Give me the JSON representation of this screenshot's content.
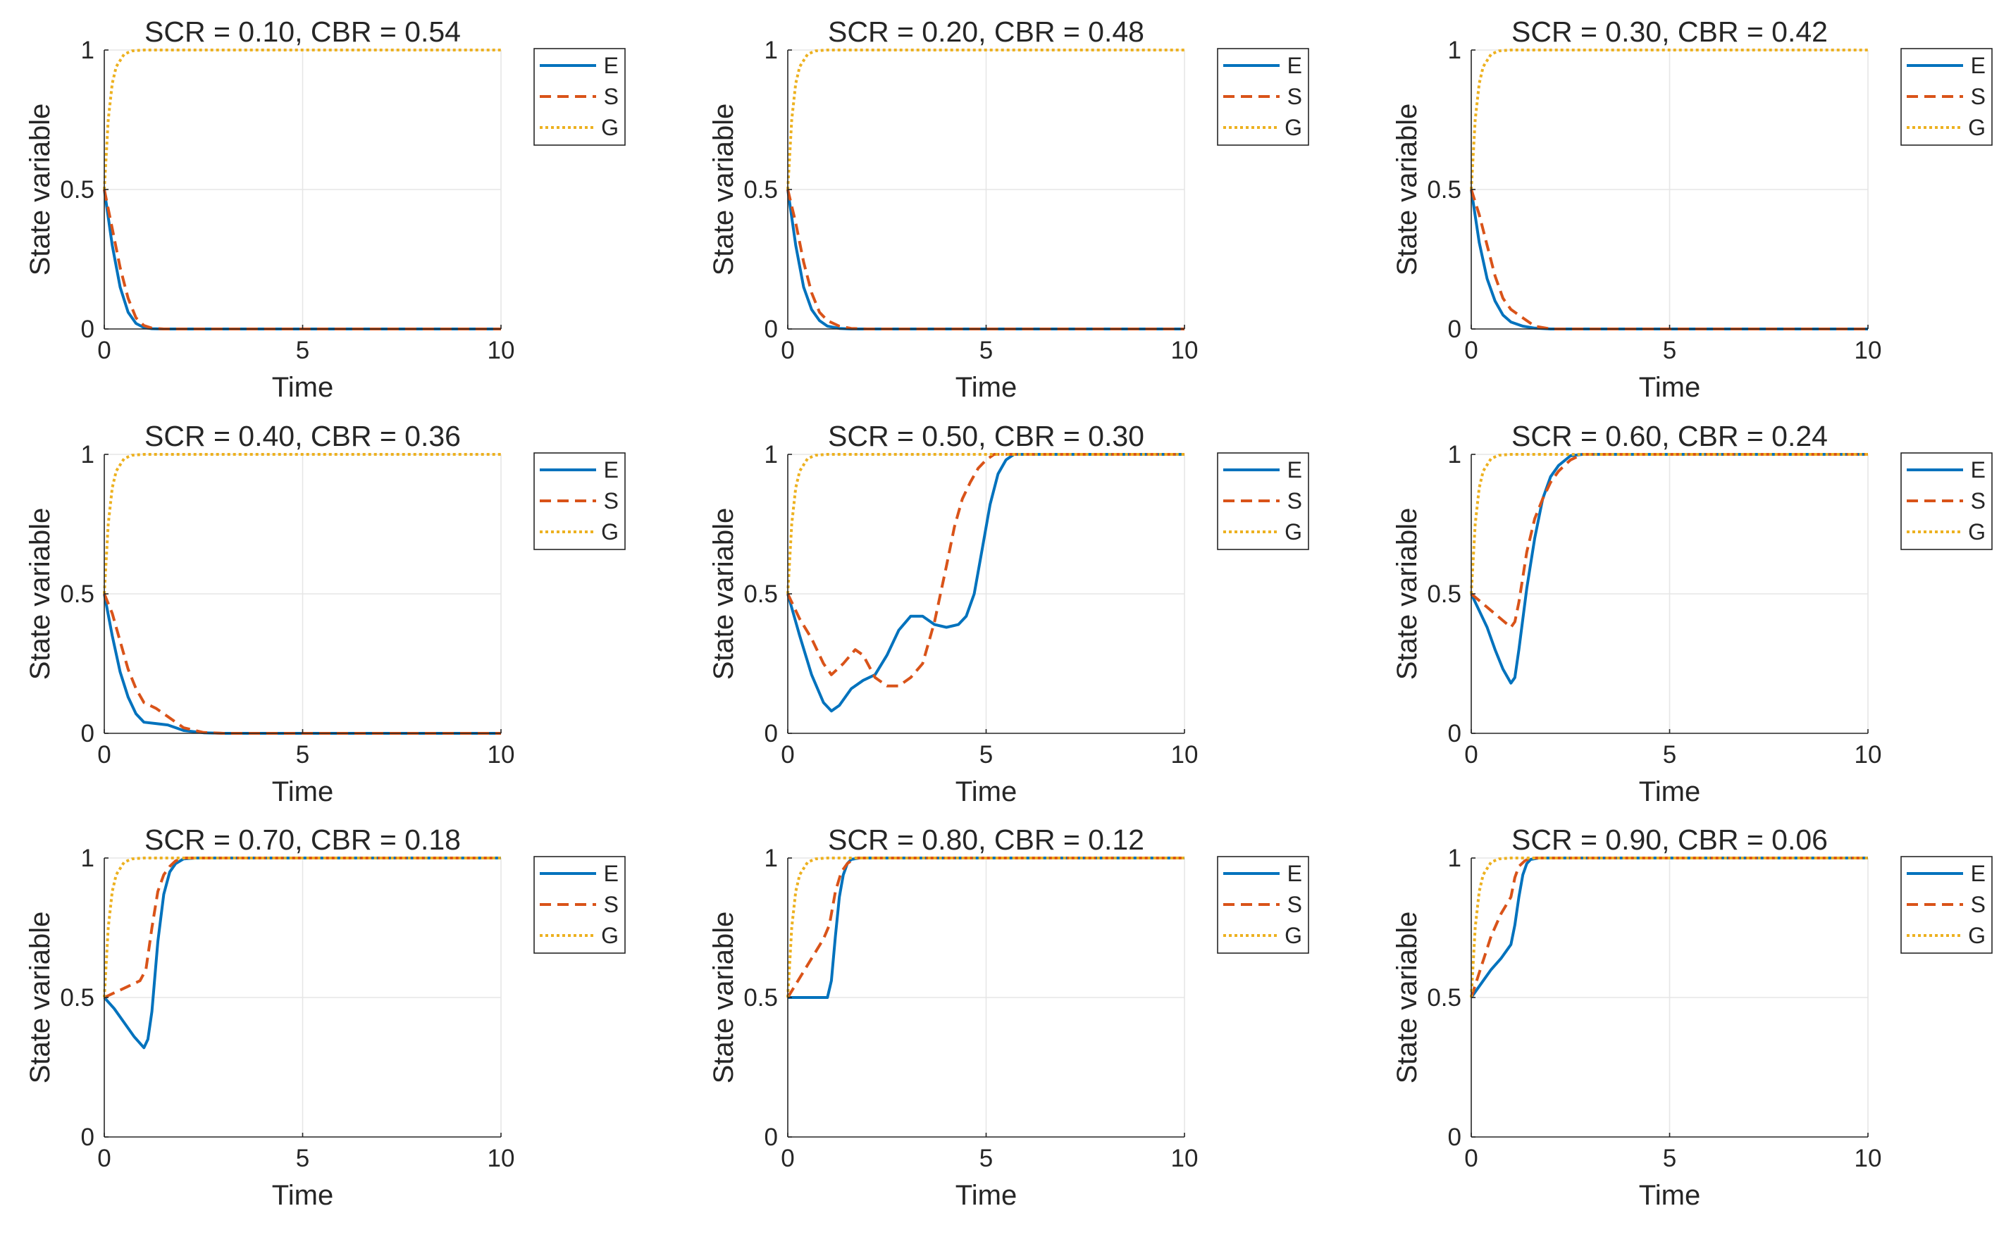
{
  "chart_data": {
    "type": "line",
    "layout": "3x3 grid of subplots",
    "xlabel": "Time",
    "ylabel": "State variable",
    "xlim": [
      0,
      10
    ],
    "ylim": [
      0,
      1
    ],
    "xticks": [
      0,
      5,
      10
    ],
    "yticks": [
      0,
      0.5,
      1
    ],
    "grid": true,
    "legend_position": "outside-top-right",
    "series_meta": [
      {
        "name": "E",
        "color": "#0072BD",
        "style": "solid"
      },
      {
        "name": "S",
        "color": "#D95319",
        "style": "dashed"
      },
      {
        "name": "G",
        "color": "#EDB120",
        "style": "dotted"
      }
    ],
    "panels": [
      {
        "title": "SCR = 0.10, CBR = 0.54",
        "series": [
          {
            "name": "E",
            "x": [
              0,
              0.2,
              0.4,
              0.6,
              0.8,
              1.0,
              1.2,
              1.5,
              2,
              10
            ],
            "values": [
              0.5,
              0.3,
              0.15,
              0.06,
              0.02,
              0.005,
              0.001,
              0,
              0,
              0
            ]
          },
          {
            "name": "S",
            "x": [
              0,
              0.2,
              0.4,
              0.6,
              0.8,
              1.0,
              1.2,
              1.5,
              2,
              10
            ],
            "values": [
              0.5,
              0.36,
              0.22,
              0.11,
              0.04,
              0.012,
              0.003,
              0,
              0,
              0
            ]
          },
          {
            "name": "G",
            "x": [
              0,
              0.1,
              0.2,
              0.3,
              0.5,
              0.7,
              1.0,
              10
            ],
            "values": [
              0.5,
              0.75,
              0.88,
              0.94,
              0.985,
              0.997,
              1.0,
              1.0
            ]
          }
        ]
      },
      {
        "title": "SCR = 0.20, CBR = 0.48",
        "series": [
          {
            "name": "E",
            "x": [
              0,
              0.2,
              0.4,
              0.6,
              0.8,
              1.0,
              1.3,
              1.6,
              10
            ],
            "values": [
              0.5,
              0.3,
              0.15,
              0.07,
              0.03,
              0.01,
              0.002,
              0,
              0
            ]
          },
          {
            "name": "S",
            "x": [
              0,
              0.2,
              0.4,
              0.6,
              0.8,
              1.0,
              1.3,
              1.6,
              2,
              10
            ],
            "values": [
              0.5,
              0.38,
              0.24,
              0.13,
              0.06,
              0.03,
              0.01,
              0.002,
              0,
              0
            ]
          },
          {
            "name": "G",
            "x": [
              0,
              0.1,
              0.2,
              0.3,
              0.5,
              0.7,
              1.0,
              10
            ],
            "values": [
              0.5,
              0.75,
              0.88,
              0.94,
              0.985,
              0.997,
              1.0,
              1.0
            ]
          }
        ]
      },
      {
        "title": "SCR = 0.30, CBR = 0.42",
        "series": [
          {
            "name": "E",
            "x": [
              0,
              0.2,
              0.4,
              0.6,
              0.8,
              1.0,
              1.3,
              1.6,
              2.0,
              10
            ],
            "values": [
              0.5,
              0.31,
              0.18,
              0.1,
              0.05,
              0.025,
              0.01,
              0.003,
              0,
              0
            ]
          },
          {
            "name": "S",
            "x": [
              0,
              0.2,
              0.4,
              0.6,
              0.8,
              1.0,
              1.3,
              1.6,
              2.0,
              10
            ],
            "values": [
              0.5,
              0.41,
              0.3,
              0.19,
              0.11,
              0.07,
              0.04,
              0.01,
              0,
              0
            ]
          },
          {
            "name": "G",
            "x": [
              0,
              0.1,
              0.2,
              0.3,
              0.5,
              0.7,
              1.0,
              10
            ],
            "values": [
              0.5,
              0.75,
              0.88,
              0.94,
              0.985,
              0.997,
              1.0,
              1.0
            ]
          }
        ]
      },
      {
        "title": "SCR = 0.40, CBR = 0.36",
        "series": [
          {
            "name": "E",
            "x": [
              0,
              0.2,
              0.4,
              0.6,
              0.8,
              1.0,
              1.3,
              1.6,
              2.0,
              2.5,
              3.0,
              10
            ],
            "values": [
              0.5,
              0.35,
              0.22,
              0.13,
              0.07,
              0.04,
              0.035,
              0.03,
              0.01,
              0.002,
              0,
              0
            ]
          },
          {
            "name": "S",
            "x": [
              0,
              0.2,
              0.4,
              0.6,
              0.8,
              1.0,
              1.3,
              1.6,
              2.0,
              2.5,
              3.0,
              10
            ],
            "values": [
              0.5,
              0.43,
              0.33,
              0.23,
              0.16,
              0.11,
              0.09,
              0.06,
              0.02,
              0.003,
              0,
              0
            ]
          },
          {
            "name": "G",
            "x": [
              0,
              0.1,
              0.2,
              0.3,
              0.5,
              0.7,
              1.0,
              10
            ],
            "values": [
              0.5,
              0.75,
              0.88,
              0.94,
              0.985,
              0.997,
              1.0,
              1.0
            ]
          }
        ]
      },
      {
        "title": "SCR = 0.50, CBR = 0.30",
        "series": [
          {
            "name": "E",
            "x": [
              0,
              0.3,
              0.6,
              0.9,
              1.1,
              1.3,
              1.6,
              1.9,
              2.2,
              2.5,
              2.8,
              3.1,
              3.4,
              3.7,
              4.0,
              4.3,
              4.5,
              4.7,
              4.9,
              5.1,
              5.3,
              5.5,
              5.7,
              6.0,
              10
            ],
            "values": [
              0.5,
              0.35,
              0.21,
              0.11,
              0.08,
              0.1,
              0.16,
              0.19,
              0.21,
              0.28,
              0.37,
              0.42,
              0.42,
              0.39,
              0.38,
              0.39,
              0.42,
              0.5,
              0.66,
              0.82,
              0.93,
              0.98,
              1.0,
              1.0,
              1.0
            ]
          },
          {
            "name": "S",
            "x": [
              0,
              0.3,
              0.6,
              0.9,
              1.1,
              1.4,
              1.7,
              1.9,
              2.2,
              2.5,
              2.8,
              3.1,
              3.4,
              3.7,
              4.0,
              4.2,
              4.4,
              4.6,
              4.8,
              5.0,
              5.2,
              5.5,
              10
            ],
            "values": [
              0.5,
              0.41,
              0.34,
              0.25,
              0.21,
              0.25,
              0.3,
              0.28,
              0.2,
              0.17,
              0.17,
              0.2,
              0.25,
              0.4,
              0.6,
              0.74,
              0.84,
              0.9,
              0.95,
              0.98,
              1.0,
              1.0,
              1.0
            ]
          },
          {
            "name": "G",
            "x": [
              0,
              0.1,
              0.2,
              0.3,
              0.5,
              0.7,
              1.0,
              10
            ],
            "values": [
              0.5,
              0.75,
              0.88,
              0.94,
              0.985,
              0.997,
              1.0,
              1.0
            ]
          }
        ]
      },
      {
        "title": "SCR = 0.60, CBR = 0.24",
        "series": [
          {
            "name": "E",
            "x": [
              0,
              0.2,
              0.4,
              0.6,
              0.8,
              1.0,
              1.1,
              1.2,
              1.4,
              1.6,
              1.8,
              2.0,
              2.2,
              2.5,
              2.8,
              10
            ],
            "values": [
              0.5,
              0.44,
              0.38,
              0.3,
              0.23,
              0.18,
              0.2,
              0.3,
              0.52,
              0.7,
              0.84,
              0.92,
              0.96,
              0.995,
              1.0,
              1.0
            ]
          },
          {
            "name": "S",
            "x": [
              0,
              0.25,
              0.5,
              0.75,
              1.0,
              1.1,
              1.2,
              1.4,
              1.6,
              1.8,
              2.0,
              2.2,
              2.5,
              2.8,
              10
            ],
            "values": [
              0.5,
              0.47,
              0.44,
              0.41,
              0.38,
              0.4,
              0.47,
              0.65,
              0.77,
              0.84,
              0.9,
              0.94,
              0.98,
              1.0,
              1.0
            ]
          },
          {
            "name": "G",
            "x": [
              0,
              0.1,
              0.2,
              0.3,
              0.5,
              0.7,
              1.0,
              10
            ],
            "values": [
              0.5,
              0.75,
              0.88,
              0.94,
              0.985,
              0.997,
              1.0,
              1.0
            ]
          }
        ]
      },
      {
        "title": "SCR = 0.70, CBR = 0.18",
        "series": [
          {
            "name": "E",
            "x": [
              0,
              0.25,
              0.5,
              0.75,
              1.0,
              1.1,
              1.2,
              1.35,
              1.5,
              1.65,
              1.8,
              2.0,
              2.3,
              10
            ],
            "values": [
              0.5,
              0.46,
              0.41,
              0.36,
              0.32,
              0.35,
              0.45,
              0.7,
              0.87,
              0.95,
              0.98,
              0.997,
              1.0,
              1.0
            ]
          },
          {
            "name": "S",
            "x": [
              0,
              0.3,
              0.6,
              0.9,
              1.05,
              1.2,
              1.35,
              1.5,
              1.65,
              1.8,
              2.0,
              10
            ],
            "values": [
              0.5,
              0.52,
              0.54,
              0.56,
              0.6,
              0.75,
              0.88,
              0.94,
              0.97,
              0.99,
              1.0,
              1.0
            ]
          },
          {
            "name": "G",
            "x": [
              0,
              0.1,
              0.2,
              0.3,
              0.5,
              0.7,
              1.0,
              10
            ],
            "values": [
              0.5,
              0.75,
              0.88,
              0.94,
              0.985,
              0.997,
              1.0,
              1.0
            ]
          }
        ]
      },
      {
        "title": "SCR = 0.80, CBR = 0.12",
        "series": [
          {
            "name": "E",
            "x": [
              0,
              0.5,
              1.0,
              1.1,
              1.2,
              1.3,
              1.4,
              1.5,
              1.6,
              1.8,
              10
            ],
            "values": [
              0.5,
              0.5,
              0.5,
              0.56,
              0.72,
              0.86,
              0.94,
              0.98,
              0.995,
              1.0,
              1.0
            ]
          },
          {
            "name": "S",
            "x": [
              0,
              0.3,
              0.6,
              0.9,
              1.05,
              1.2,
              1.35,
              1.5,
              1.7,
              10
            ],
            "values": [
              0.5,
              0.57,
              0.64,
              0.71,
              0.76,
              0.88,
              0.95,
              0.98,
              1.0,
              1.0
            ]
          },
          {
            "name": "G",
            "x": [
              0,
              0.1,
              0.2,
              0.3,
              0.5,
              0.7,
              1.0,
              10
            ],
            "values": [
              0.5,
              0.75,
              0.88,
              0.94,
              0.985,
              0.997,
              1.0,
              1.0
            ]
          }
        ]
      },
      {
        "title": "SCR = 0.90, CBR = 0.06",
        "series": [
          {
            "name": "E",
            "x": [
              0,
              0.25,
              0.5,
              0.75,
              1.0,
              1.1,
              1.2,
              1.3,
              1.4,
              1.5,
              1.7,
              10
            ],
            "values": [
              0.5,
              0.55,
              0.6,
              0.64,
              0.69,
              0.76,
              0.86,
              0.94,
              0.98,
              0.995,
              1.0,
              1.0
            ]
          },
          {
            "name": "S",
            "x": [
              0,
              0.25,
              0.5,
              0.75,
              1.0,
              1.1,
              1.2,
              1.35,
              1.5,
              10
            ],
            "values": [
              0.5,
              0.61,
              0.72,
              0.8,
              0.86,
              0.93,
              0.97,
              0.99,
              1.0,
              1.0
            ]
          },
          {
            "name": "G",
            "x": [
              0,
              0.1,
              0.2,
              0.3,
              0.5,
              0.7,
              1.0,
              10
            ],
            "values": [
              0.5,
              0.75,
              0.88,
              0.94,
              0.985,
              0.997,
              1.0,
              1.0
            ]
          }
        ]
      }
    ]
  }
}
